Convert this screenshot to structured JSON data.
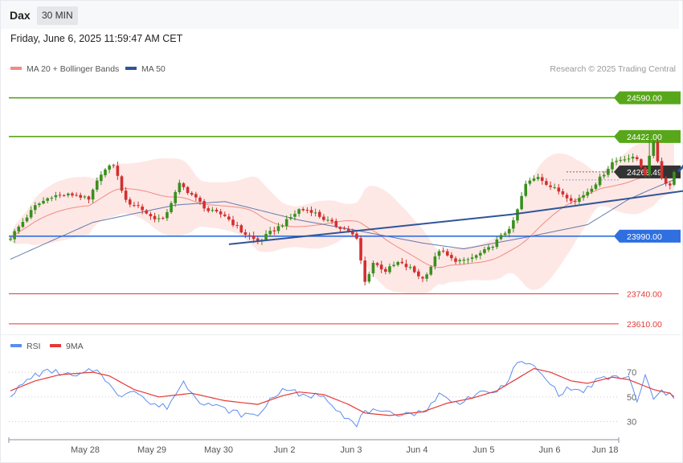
{
  "header": {
    "symbol": "Dax",
    "timeframe": "30 MIN"
  },
  "datetime_label": "Friday, June 6, 2025 11:59:47 AM CET",
  "credit": "Research © 2025 Trading Central",
  "legend": {
    "main": [
      {
        "label": "MA 20 + Bollinger Bands",
        "color": "#f28b82"
      },
      {
        "label": "MA 50",
        "color": "#2f5597"
      }
    ],
    "rsi": [
      {
        "label": "RSI",
        "color": "#5b8def"
      },
      {
        "label": "9MA",
        "color": "#e53935"
      }
    ]
  },
  "chart_data": [
    {
      "type": "candlestick",
      "ylim": [
        23585,
        24655
      ],
      "x_tick_labels": [
        "May 28",
        "May 29",
        "May 30",
        "Jun 2",
        "Jun 3",
        "Jun 4",
        "Jun 5",
        "Jun 6",
        "Jun 18"
      ],
      "levels": [
        {
          "value": 24590.0,
          "label": "24590.00",
          "color": "#58a71a",
          "badge": true
        },
        {
          "value": 24422.0,
          "label": "24422.00",
          "color": "#58a71a",
          "badge": true
        },
        {
          "value": 24268.49,
          "label": "24268.49",
          "color": "#333333",
          "badge": true,
          "current": true
        },
        {
          "value": 23990.0,
          "label": "23990.00",
          "color": "#2f6fe0",
          "badge": true
        },
        {
          "value": 23740.0,
          "label": "23740.00",
          "color": "#e53935",
          "badge": false
        },
        {
          "value": 23610.0,
          "label": "23610.00",
          "color": "#e53935",
          "badge": false
        }
      ],
      "candle_count": 162,
      "anchors": [
        [
          0,
          23985
        ],
        [
          6,
          24120
        ],
        [
          10,
          24165
        ],
        [
          16,
          24170
        ],
        [
          19,
          24145
        ],
        [
          22,
          24265
        ],
        [
          25,
          24300
        ],
        [
          28,
          24140
        ],
        [
          31,
          24120
        ],
        [
          34,
          24075
        ],
        [
          37,
          24060
        ],
        [
          41,
          24215
        ],
        [
          44,
          24170
        ],
        [
          48,
          24100
        ],
        [
          52,
          24080
        ],
        [
          56,
          24010
        ],
        [
          60,
          23965
        ],
        [
          63,
          24005
        ],
        [
          67,
          24055
        ],
        [
          70,
          24105
        ],
        [
          73,
          24100
        ],
        [
          76,
          24065
        ],
        [
          79,
          24035
        ],
        [
          82,
          24015
        ],
        [
          84,
          23975
        ],
        [
          86,
          23790
        ],
        [
          88,
          23875
        ],
        [
          91,
          23840
        ],
        [
          94,
          23875
        ],
        [
          97,
          23850
        ],
        [
          100,
          23805
        ],
        [
          102,
          23860
        ],
        [
          104,
          23930
        ],
        [
          107,
          23890
        ],
        [
          110,
          23880
        ],
        [
          113,
          23905
        ],
        [
          116,
          23935
        ],
        [
          120,
          24005
        ],
        [
          122,
          24050
        ],
        [
          125,
          24215
        ],
        [
          128,
          24250
        ],
        [
          131,
          24205
        ],
        [
          134,
          24175
        ],
        [
          137,
          24140
        ],
        [
          140,
          24185
        ],
        [
          143,
          24240
        ],
        [
          146,
          24310
        ],
        [
          149,
          24330
        ],
        [
          152,
          24325
        ],
        [
          154,
          24260
        ],
        [
          156,
          24400
        ],
        [
          158,
          24240
        ],
        [
          160,
          24210
        ],
        [
          161,
          24268
        ]
      ],
      "ma50_anchors": [
        [
          0,
          23890
        ],
        [
          20,
          24050
        ],
        [
          40,
          24125
        ],
        [
          52,
          24140
        ],
        [
          70,
          24060
        ],
        [
          84,
          24015
        ],
        [
          100,
          23960
        ],
        [
          110,
          23935
        ],
        [
          125,
          23985
        ],
        [
          140,
          24040
        ],
        [
          150,
          24150
        ],
        [
          155,
          24190
        ],
        [
          161,
          24235
        ]
      ],
      "trendlines": [
        {
          "from": [
            53,
            23955
          ],
          "to": [
            122,
            24085
          ],
          "color": "#2f5597"
        },
        {
          "from": [
            122,
            24085
          ],
          "to": [
            167,
            24195
          ],
          "color": "#2f5597"
        }
      ],
      "projection_arrow": {
        "from": [
          162,
          24270
        ],
        "to": [
          178,
          24585
        ],
        "color": "#2b5aa0"
      }
    },
    {
      "type": "line",
      "title": "RSI",
      "ylim": [
        20,
        85
      ],
      "y_tick_labels": [
        "70",
        "50",
        "30"
      ],
      "y_ticks": [
        70,
        50,
        30
      ],
      "reference_lines": [
        70,
        50,
        30
      ],
      "series": [
        {
          "name": "RSI",
          "color": "#5b8def",
          "anchors": [
            [
              0,
              52
            ],
            [
              6,
              68
            ],
            [
              10,
              71
            ],
            [
              16,
              66
            ],
            [
              20,
              72
            ],
            [
              22,
              70
            ],
            [
              26,
              50
            ],
            [
              30,
              57
            ],
            [
              34,
              44
            ],
            [
              38,
              42
            ],
            [
              42,
              62
            ],
            [
              46,
              47
            ],
            [
              52,
              40
            ],
            [
              56,
              36
            ],
            [
              60,
              35
            ],
            [
              64,
              52
            ],
            [
              68,
              57
            ],
            [
              70,
              50
            ],
            [
              76,
              52
            ],
            [
              80,
              38
            ],
            [
              84,
              26
            ],
            [
              86,
              40
            ],
            [
              90,
              36
            ],
            [
              95,
              37
            ],
            [
              100,
              37
            ],
            [
              104,
              52
            ],
            [
              108,
              45
            ],
            [
              113,
              52
            ],
            [
              116,
              53
            ],
            [
              120,
              58
            ],
            [
              122,
              75
            ],
            [
              125,
              78
            ],
            [
              127,
              74
            ],
            [
              130,
              64
            ],
            [
              133,
              53
            ],
            [
              136,
              57
            ],
            [
              139,
              54
            ],
            [
              142,
              63
            ],
            [
              146,
              66
            ],
            [
              150,
              66
            ],
            [
              152,
              45
            ],
            [
              154,
              68
            ],
            [
              156,
              47
            ],
            [
              158,
              55
            ],
            [
              161,
              49
            ]
          ]
        },
        {
          "name": "9MA",
          "color": "#e53935",
          "anchors": [
            [
              0,
              55
            ],
            [
              6,
              63
            ],
            [
              12,
              68
            ],
            [
              20,
              70
            ],
            [
              24,
              67
            ],
            [
              30,
              56
            ],
            [
              36,
              50
            ],
            [
              44,
              53
            ],
            [
              52,
              47
            ],
            [
              60,
              44
            ],
            [
              66,
              51
            ],
            [
              70,
              54
            ],
            [
              76,
              52
            ],
            [
              82,
              44
            ],
            [
              86,
              37
            ],
            [
              92,
              35
            ],
            [
              100,
              38
            ],
            [
              106,
              45
            ],
            [
              112,
              49
            ],
            [
              118,
              55
            ],
            [
              122,
              63
            ],
            [
              127,
              73
            ],
            [
              131,
              70
            ],
            [
              136,
              63
            ],
            [
              140,
              61
            ],
            [
              146,
              66
            ],
            [
              150,
              64
            ],
            [
              156,
              56
            ],
            [
              160,
              53
            ],
            [
              161,
              50
            ]
          ]
        }
      ]
    }
  ]
}
